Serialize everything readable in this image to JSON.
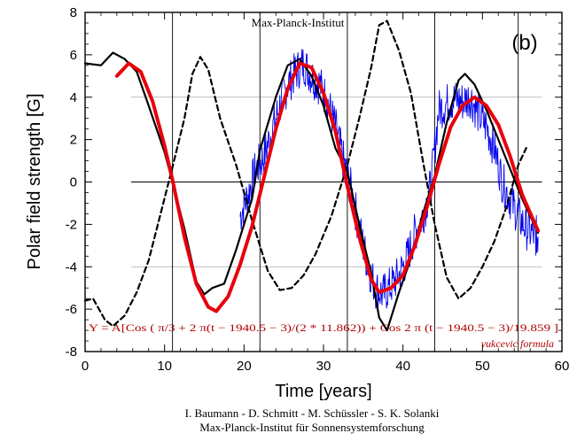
{
  "chart_data": {
    "type": "line",
    "xlabel": "Time [years]",
    "ylabel": "Polar field strength [G]",
    "xlim": [
      0,
      60
    ],
    "ylim": [
      -8,
      8
    ],
    "x_ticks": [
      "0",
      "10",
      "20",
      "30",
      "40",
      "50",
      "60"
    ],
    "y_ticks": [
      "-8",
      "-6",
      "-4",
      "-2",
      "0",
      "2",
      "4",
      "6",
      "8"
    ],
    "panel_label": "(b)",
    "top_annotation": "Max-Planck-Institut",
    "formula": "Y = A[Cos ( π/3 + 2 π(t − 1940.5 − 3)/(2 * 11.862)) + Cos 2 π (t − 1940.5 − 3)/19.859 ]",
    "formula_credit": "vukcevic formula",
    "vertical_lines_x": [
      11,
      22,
      33,
      44,
      54.5
    ],
    "horizontal_gridlines_y": [
      -4,
      0,
      4
    ],
    "series": [
      {
        "style": "solid-black",
        "color": "#000000",
        "x": [
          0,
          2,
          3.5,
          5,
          6.5,
          8,
          10,
          11,
          12.5,
          14,
          15,
          16,
          17.5,
          19,
          21,
          22,
          24,
          25.5,
          27,
          28.5,
          30,
          31.5,
          33,
          34.5,
          36,
          37,
          38,
          39.5,
          41,
          42.5,
          44,
          45.5,
          47,
          47.8,
          49,
          50.5,
          52,
          53.5,
          55,
          56.5,
          57
        ],
        "y": [
          5.6,
          5.5,
          6.1,
          5.8,
          5.2,
          3.6,
          1.4,
          0,
          -2.2,
          -4.7,
          -5.3,
          -5.0,
          -4.8,
          -3.2,
          -0.8,
          1.5,
          4.0,
          5.5,
          5.8,
          5.0,
          3.6,
          1.6,
          0.5,
          -2.0,
          -4.3,
          -6.4,
          -7.0,
          -5.2,
          -3.6,
          -1.5,
          0.3,
          2.8,
          4.8,
          5.1,
          4.6,
          3.4,
          2.0,
          0.6,
          -0.8,
          -2.0,
          -2.4
        ]
      },
      {
        "style": "dashed-black",
        "color": "#000000",
        "x": [
          0,
          1,
          2.5,
          3.5,
          5,
          6.5,
          8,
          9.5,
          11,
          12.5,
          13.5,
          14.5,
          15.5,
          17,
          19,
          21,
          23,
          24.5,
          26,
          27.5,
          29,
          31,
          33,
          34.5,
          36,
          37,
          38,
          39.5,
          41,
          42.5,
          44,
          45.5,
          47,
          48.5,
          50,
          51.5,
          53,
          54.5,
          55.5
        ],
        "y": [
          -5.6,
          -5.5,
          -6.5,
          -6.8,
          -6.3,
          -5.2,
          -3.7,
          -1.5,
          0.7,
          3.0,
          5.1,
          5.9,
          5.3,
          3.0,
          0.8,
          -1.8,
          -4.2,
          -5.1,
          -5.0,
          -4.4,
          -3.4,
          -1.6,
          0.8,
          3.0,
          5.4,
          7.4,
          7.6,
          6.2,
          4.2,
          1.0,
          -2.0,
          -4.5,
          -5.5,
          -5.0,
          -4.0,
          -2.8,
          -1.2,
          0.8,
          1.6
        ]
      },
      {
        "style": "solid-red",
        "color": "#e8000b",
        "x": [
          4,
          5.5,
          7,
          8.5,
          10,
          11,
          12.5,
          14,
          15.5,
          16.5,
          18,
          19.5,
          21,
          22.5,
          24,
          25.5,
          27,
          28.5,
          30,
          31.5,
          33,
          34.5,
          36,
          37,
          38.5,
          40,
          41.5,
          43,
          44.5,
          46,
          47.5,
          49,
          50.5,
          52,
          53.5,
          55,
          57
        ],
        "y": [
          5.0,
          5.6,
          5.2,
          3.8,
          1.7,
          0.1,
          -2.6,
          -4.8,
          -5.9,
          -6.1,
          -5.4,
          -3.9,
          -2.1,
          0.2,
          2.5,
          4.4,
          5.6,
          5.4,
          4.2,
          2.4,
          -0.2,
          -2.6,
          -4.6,
          -5.2,
          -5.0,
          -4.4,
          -3.0,
          -1.2,
          0.8,
          2.6,
          3.6,
          4.0,
          3.6,
          2.7,
          1.2,
          -0.6,
          -2.3
        ]
      },
      {
        "style": "noisy-blue",
        "color": "#0000ee",
        "x": [
          19.5,
          20.5,
          21.5,
          22.5,
          23.5,
          24.5,
          25.5,
          26.5,
          27.5,
          28.5,
          29.5,
          30.5,
          31.5,
          32.5,
          33.5,
          34.5,
          35.5,
          36.5,
          37.5,
          38.5,
          39.5,
          40.5,
          41.5,
          42.5,
          43.5,
          44.5,
          45.5,
          46.5,
          47.5,
          48.5,
          49.5,
          50.5,
          51.5,
          52.5,
          53.5,
          54.5,
          55.5,
          56.5,
          57
        ],
        "y": [
          -1.6,
          -0.6,
          0.6,
          1.2,
          2.4,
          3.6,
          4.6,
          5.2,
          5.6,
          5.0,
          4.6,
          3.8,
          2.6,
          1.0,
          -0.4,
          -2.2,
          -3.8,
          -5.0,
          -5.3,
          -4.9,
          -4.4,
          -3.6,
          -2.4,
          -1.6,
          -0.2,
          3.4,
          3.7,
          3.9,
          3.8,
          4.0,
          3.2,
          2.6,
          1.6,
          0.0,
          -0.8,
          -1.6,
          -2.2,
          -2.5,
          -2.6
        ]
      }
    ],
    "footer_authors": "I. Baumann - D. Schmitt - M. Schüssler - S. K. Solanki",
    "footer_institute": "Max-Planck-Institut für Sonnensystemforschung"
  }
}
